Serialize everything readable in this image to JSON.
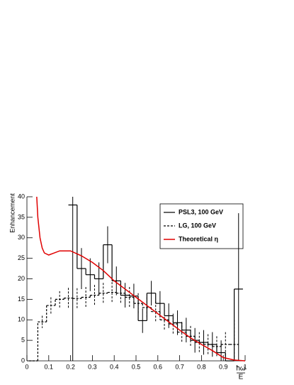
{
  "chart_data": {
    "type": "histogram",
    "y_label": "Enhancement",
    "x_label_numerator": "ħω",
    "x_label_denominator": "E",
    "xlim": [
      0,
      1
    ],
    "ylim": [
      0,
      40
    ],
    "xticks": [
      0,
      0.1,
      0.2,
      0.3,
      0.4,
      0.5,
      0.6,
      0.7,
      0.8,
      0.9,
      1
    ],
    "yticks": [
      0,
      5,
      10,
      15,
      20,
      25,
      30,
      35,
      40
    ],
    "legend": "top-right",
    "series": [
      {
        "name": "PSL3, 100 GeV",
        "color": "#000000",
        "style": "solid",
        "bins": [
          0.19,
          0.23,
          0.27,
          0.31,
          0.35,
          0.39,
          0.43,
          0.47,
          0.51,
          0.55,
          0.59,
          0.63,
          0.67,
          0.71,
          0.75,
          0.79,
          0.83,
          0.87,
          0.91,
          0.95,
          0.99
        ],
        "values": [
          38,
          22.5,
          21,
          20,
          28.3,
          19.5,
          16,
          15.8,
          9.8,
          16.5,
          14,
          11,
          9.3,
          7.5,
          5,
          4.5,
          4,
          2,
          0,
          17.5
        ],
        "errors": [
          38,
          5,
          4,
          4,
          4.5,
          3.5,
          3,
          3,
          3,
          3,
          3,
          3,
          3,
          3,
          3,
          3,
          3,
          3,
          0,
          18.5
        ]
      },
      {
        "name": "LG, 100 GeV",
        "color": "#000000",
        "style": "dashed",
        "bins": [
          0.01,
          0.05,
          0.09,
          0.13,
          0.17,
          0.21,
          0.25,
          0.29,
          0.33,
          0.37,
          0.41,
          0.45,
          0.49,
          0.53,
          0.57,
          0.61,
          0.65,
          0.69,
          0.73,
          0.77,
          0.81,
          0.85,
          0.89,
          0.93,
          0.97
        ],
        "values": [
          0,
          9.5,
          13.5,
          15,
          15.3,
          15.2,
          15.5,
          16,
          16.5,
          16.7,
          16.5,
          15.5,
          14,
          13,
          12,
          10,
          9,
          7,
          6,
          4.5,
          4,
          3.5,
          4,
          4
        ],
        "errors": [
          0,
          1.5,
          2,
          2,
          2.5,
          2.5,
          2.5,
          2.5,
          2.5,
          2.5,
          2.5,
          2.5,
          2.5,
          2.5,
          2.5,
          2.5,
          2.5,
          2.5,
          2.5,
          2.5,
          2.5,
          2.5,
          3,
          6
        ]
      },
      {
        "name": "Theoretical η",
        "color": "#e00000",
        "style": "line",
        "x": [
          0.045,
          0.05,
          0.06,
          0.07,
          0.08,
          0.1,
          0.12,
          0.15,
          0.2,
          0.25,
          0.3,
          0.35,
          0.4,
          0.45,
          0.5,
          0.55,
          0.6,
          0.65,
          0.7,
          0.75,
          0.8,
          0.85,
          0.9,
          0.95,
          1.0
        ],
        "values": [
          40,
          35,
          30,
          27.5,
          26.3,
          25.8,
          26.2,
          26.8,
          26.8,
          25.6,
          24,
          22,
          19.5,
          17.5,
          15.5,
          13.5,
          11.5,
          9.5,
          7.5,
          5.6,
          4,
          2.5,
          0.8,
          0.2,
          0
        ]
      }
    ]
  }
}
